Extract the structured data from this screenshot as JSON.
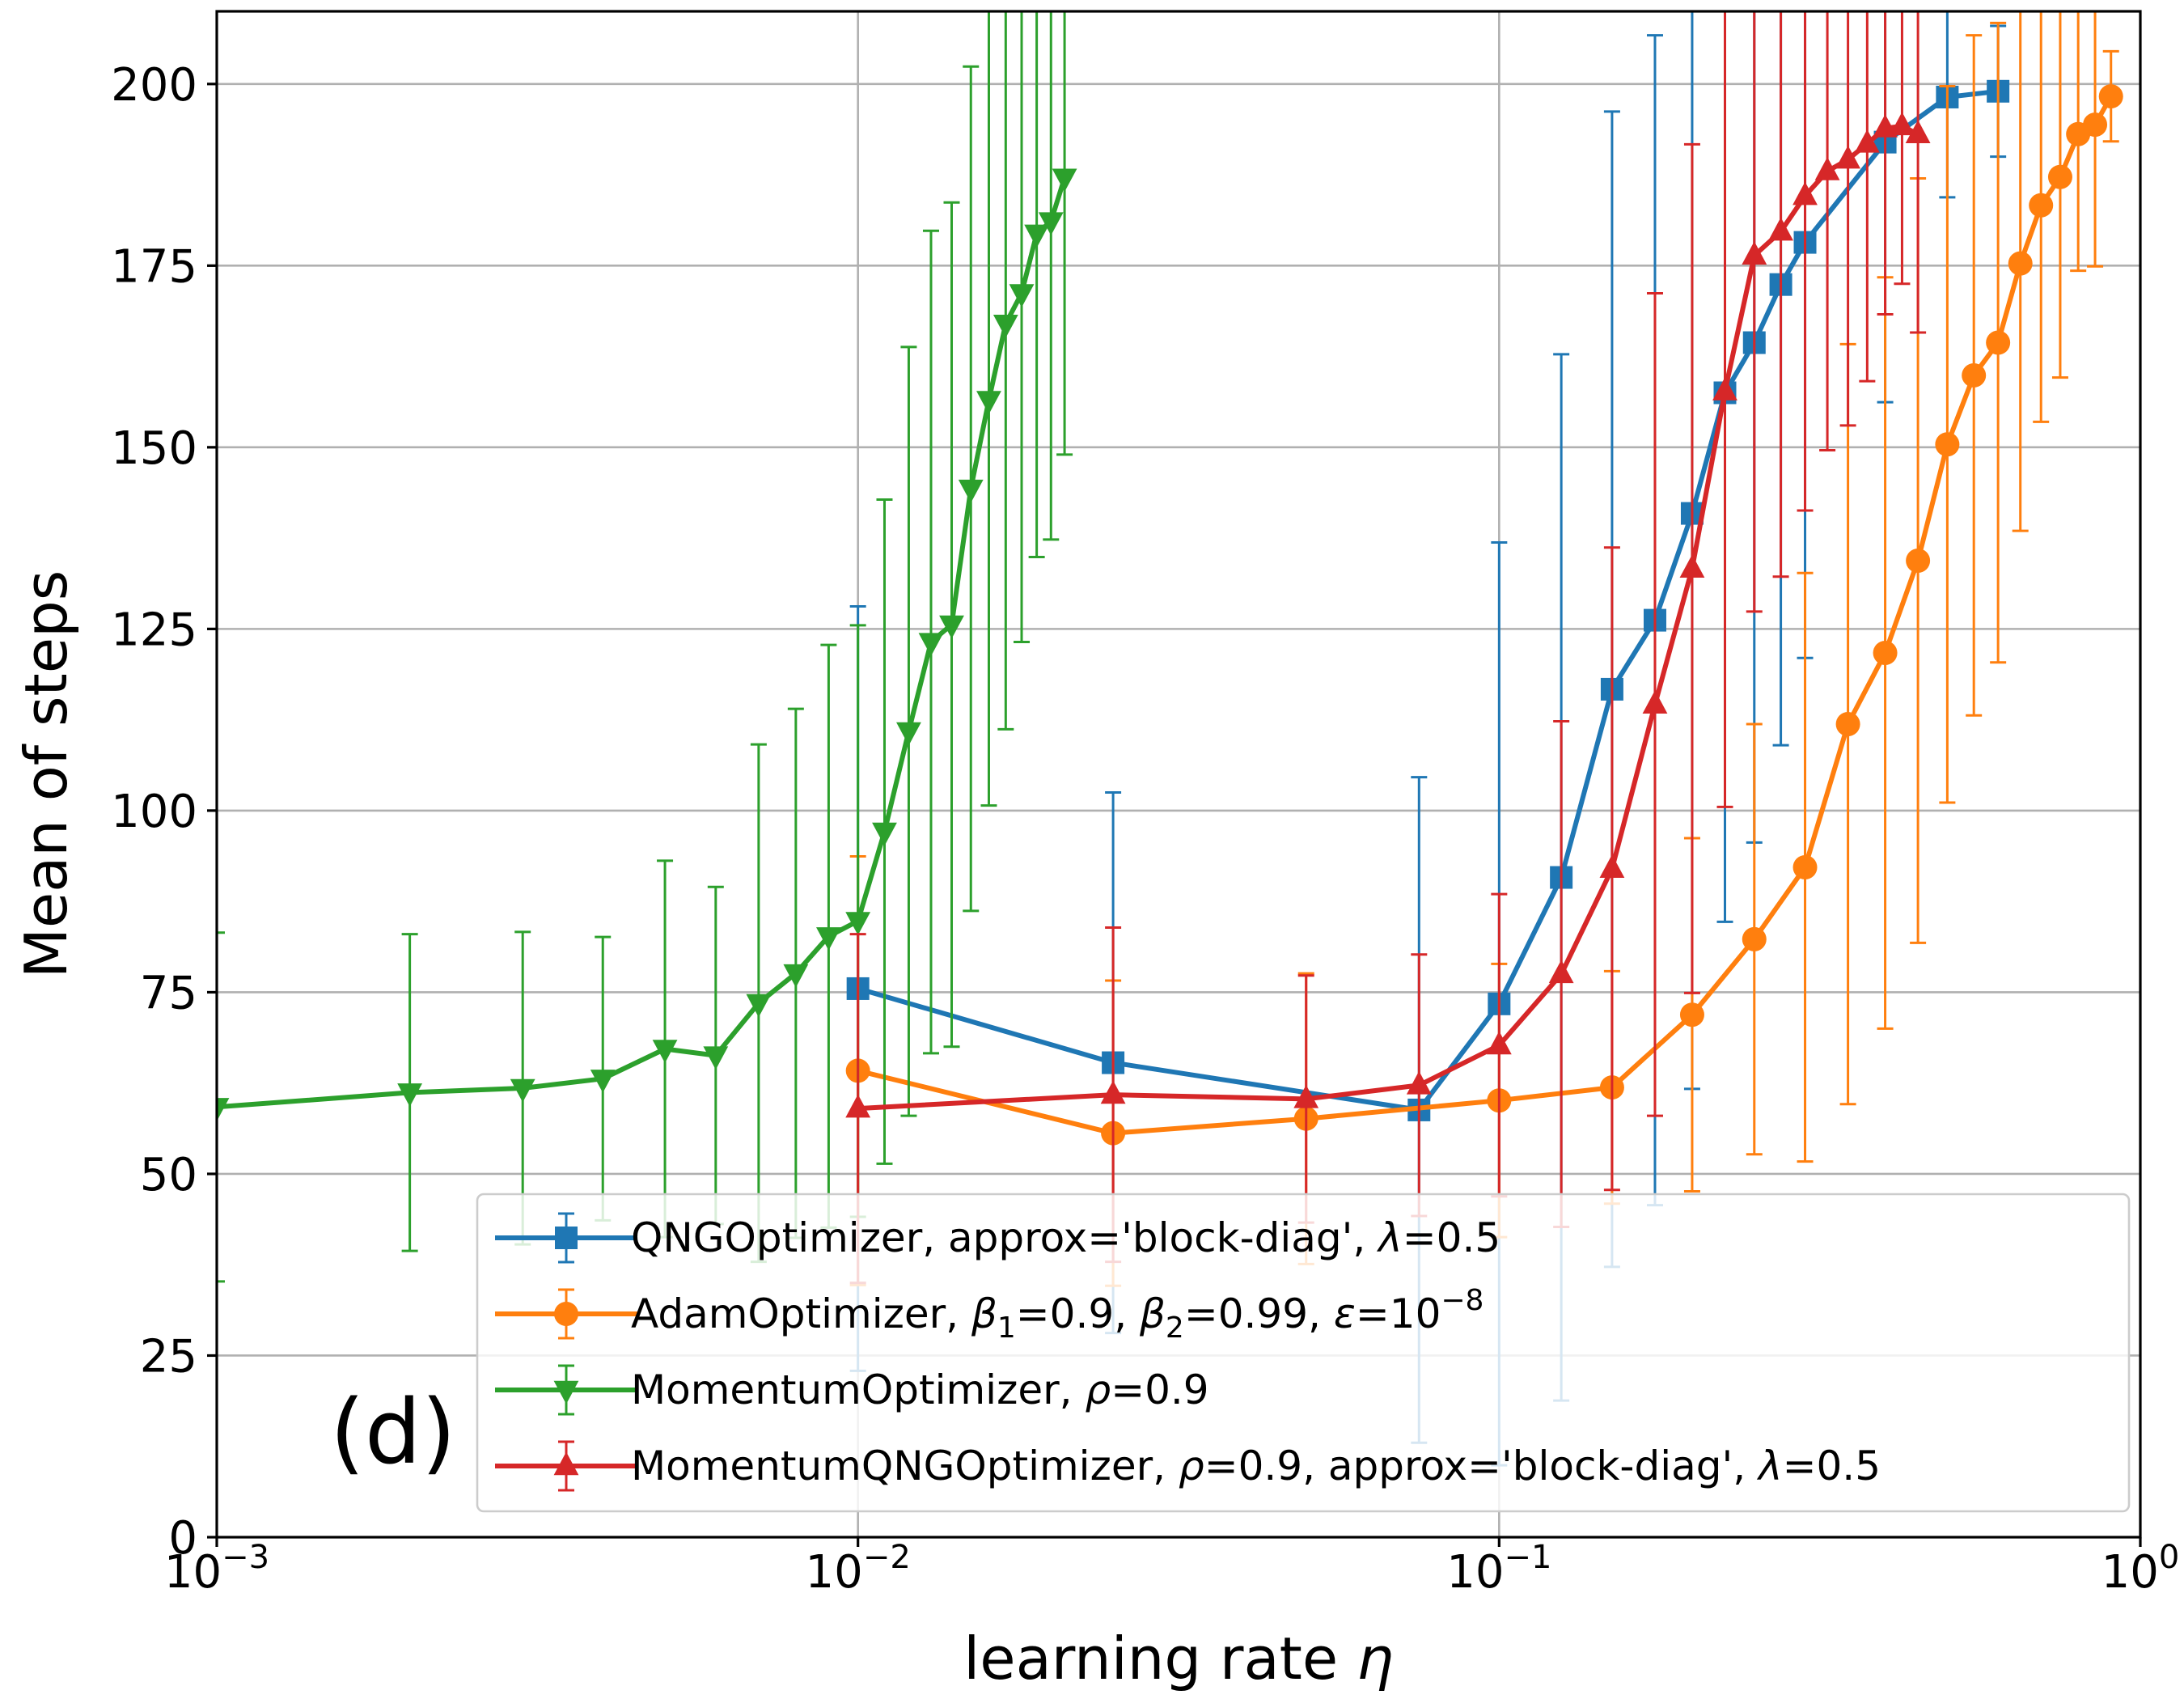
{
  "chart_data": {
    "type": "line",
    "panel_label": "(d)",
    "xlabel": "learning rate η",
    "ylabel": "Mean of steps",
    "xscale": "log",
    "xlim": [
      0.001,
      1.0
    ],
    "ylim": [
      0,
      210
    ],
    "grid": true,
    "legend_position": "lower-right",
    "x_ticks": [
      {
        "value": 0.001,
        "base": "10",
        "exp": "−3"
      },
      {
        "value": 0.01,
        "base": "10",
        "exp": "−2"
      },
      {
        "value": 0.1,
        "base": "10",
        "exp": "−1"
      },
      {
        "value": 1.0,
        "base": "10",
        "exp": "0"
      }
    ],
    "y_ticks": [
      0,
      25,
      50,
      75,
      100,
      125,
      150,
      175,
      200
    ],
    "series": [
      {
        "name": "QNGOptimizer, approx='block-diag', λ=0.5",
        "legend_parts": [
          {
            "t": "QNGOptimizer, approx='block-diag', "
          },
          {
            "t": "λ",
            "i": true
          },
          {
            "t": "=0.5"
          }
        ],
        "color": "#1f77b4",
        "marker": "square",
        "x": [
          0.01,
          0.025,
          0.075,
          0.1,
          0.125,
          0.15,
          0.175,
          0.2,
          0.225,
          0.25,
          0.275,
          0.3,
          0.4,
          0.5,
          0.6
        ],
        "y": [
          75.5,
          65.3,
          58.8,
          73.4,
          90.8,
          116.7,
          126.2,
          140.9,
          157.5,
          164.4,
          172.4,
          178.2,
          192.0,
          198.2,
          199.0
        ],
        "err": [
          52.6,
          37.2,
          45.8,
          63.5,
          72.0,
          79.5,
          80.5,
          79.2,
          72.8,
          68.8,
          63.4,
          57.2,
          35.8,
          13.8,
          9.0
        ]
      },
      {
        "name": "AdamOptimizer, β1=0.9, β2=0.99, ε=10−8",
        "legend_parts": [
          {
            "t": "AdamOptimizer, "
          },
          {
            "t": "β",
            "i": true
          },
          {
            "t": "1",
            "sub": true
          },
          {
            "t": "=0.9, "
          },
          {
            "t": "β",
            "i": true
          },
          {
            "t": "2",
            "sub": true
          },
          {
            "t": "=0.99, "
          },
          {
            "t": "ε",
            "i": true
          },
          {
            "t": "=10"
          },
          {
            "t": "−8",
            "sup": true
          }
        ],
        "color": "#ff7f0e",
        "marker": "circle",
        "x": [
          0.01,
          0.025,
          0.05,
          0.1,
          0.15,
          0.2,
          0.25,
          0.3,
          0.35,
          0.4,
          0.45,
          0.5,
          0.55,
          0.6,
          0.65,
          0.7,
          0.75,
          0.8,
          0.85,
          0.9
        ],
        "y": [
          64.2,
          55.6,
          57.6,
          60.1,
          61.9,
          71.9,
          82.3,
          92.2,
          111.9,
          121.7,
          134.4,
          150.4,
          159.9,
          164.4,
          175.3,
          183.3,
          187.2,
          193.1,
          194.4,
          198.3
        ],
        "err": [
          29.5,
          21.0,
          20.0,
          18.8,
          16.0,
          24.3,
          29.6,
          40.5,
          52.3,
          51.7,
          52.6,
          49.3,
          46.8,
          44.0,
          36.8,
          29.8,
          27.6,
          18.8,
          19.5,
          6.2
        ]
      },
      {
        "name": "MomentumOptimizer, ρ=0.9",
        "legend_parts": [
          {
            "t": "MomentumOptimizer, "
          },
          {
            "t": "ρ",
            "i": true
          },
          {
            "t": "=0.9"
          }
        ],
        "color": "#2ca02c",
        "marker": "triangle-down",
        "x": [
          0.001,
          0.002,
          0.003,
          0.004,
          0.005,
          0.006,
          0.007,
          0.008,
          0.009,
          0.01,
          0.011,
          0.012,
          0.013,
          0.014,
          0.015,
          0.016,
          0.017,
          0.018,
          0.019,
          0.02,
          0.021
        ],
        "y": [
          59.2,
          61.2,
          61.8,
          63.1,
          67.2,
          66.3,
          73.5,
          77.6,
          82.7,
          84.8,
          97.1,
          110.9,
          123.2,
          125.6,
          144.3,
          156.5,
          167.0,
          171.2,
          179.4,
          181.1,
          187.1
        ],
        "err": [
          24.0,
          21.8,
          21.5,
          19.5,
          25.9,
          23.2,
          35.6,
          36.4,
          40.1,
          40.7,
          45.7,
          52.9,
          56.6,
          58.1,
          58.1,
          55.8,
          55.8,
          48.0,
          44.5,
          43.8,
          38.1
        ]
      },
      {
        "name": "MomentumQNGOptimizer, ρ=0.9, approx='block-diag', λ=0.5",
        "legend_parts": [
          {
            "t": "MomentumQNGOptimizer, "
          },
          {
            "t": "ρ",
            "i": true
          },
          {
            "t": "=0.9, approx='block-diag', "
          },
          {
            "t": "λ",
            "i": true
          },
          {
            "t": "=0.5"
          }
        ],
        "color": "#d62728",
        "marker": "triangle-up",
        "x": [
          0.01,
          0.025,
          0.05,
          0.075,
          0.1,
          0.125,
          0.15,
          0.175,
          0.2,
          0.225,
          0.25,
          0.275,
          0.3,
          0.325,
          0.35,
          0.375,
          0.4,
          0.425,
          0.45
        ],
        "y": [
          59.0,
          60.9,
          60.3,
          62.2,
          67.7,
          77.5,
          92.0,
          114.6,
          133.3,
          157.7,
          176.4,
          179.7,
          184.6,
          188.0,
          189.6,
          191.8,
          193.9,
          194.2,
          193.1
        ],
        "err": [
          24.0,
          23.0,
          17.0,
          18.0,
          20.8,
          34.8,
          44.2,
          56.6,
          58.4,
          57.2,
          49.0,
          47.5,
          43.3,
          38.4,
          36.6,
          32.7,
          25.6,
          21.7,
          27.3
        ]
      }
    ]
  }
}
